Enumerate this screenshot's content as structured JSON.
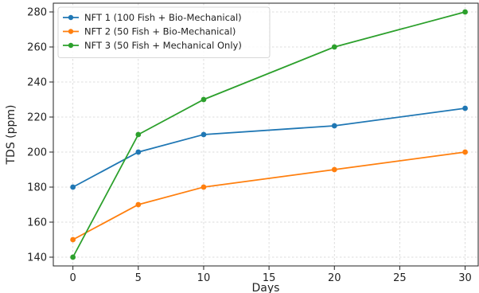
{
  "chart_data": {
    "type": "line",
    "xlabel": "Days",
    "ylabel": "TDS (ppm)",
    "xlim": [
      -1.5,
      31.0
    ],
    "ylim": [
      135,
      285
    ],
    "xticks": [
      0,
      5,
      10,
      15,
      20,
      25,
      30
    ],
    "yticks": [
      140,
      160,
      180,
      200,
      220,
      240,
      260,
      280
    ],
    "grid": true,
    "legend_position": "top-left",
    "x": [
      0,
      5,
      10,
      20,
      30
    ],
    "series": [
      {
        "name": "NFT 1 (100 Fish + Bio-Mechanical)",
        "color": "#1f77b4",
        "values": [
          180,
          200,
          210,
          215,
          225
        ]
      },
      {
        "name": "NFT 2 (50 Fish + Bio-Mechanical)",
        "color": "#ff7f0e",
        "values": [
          150,
          170,
          180,
          190,
          200
        ]
      },
      {
        "name": "NFT 3 (50 Fish + Mechanical Only)",
        "color": "#2ca02c",
        "values": [
          140,
          210,
          230,
          260,
          280
        ]
      }
    ]
  }
}
